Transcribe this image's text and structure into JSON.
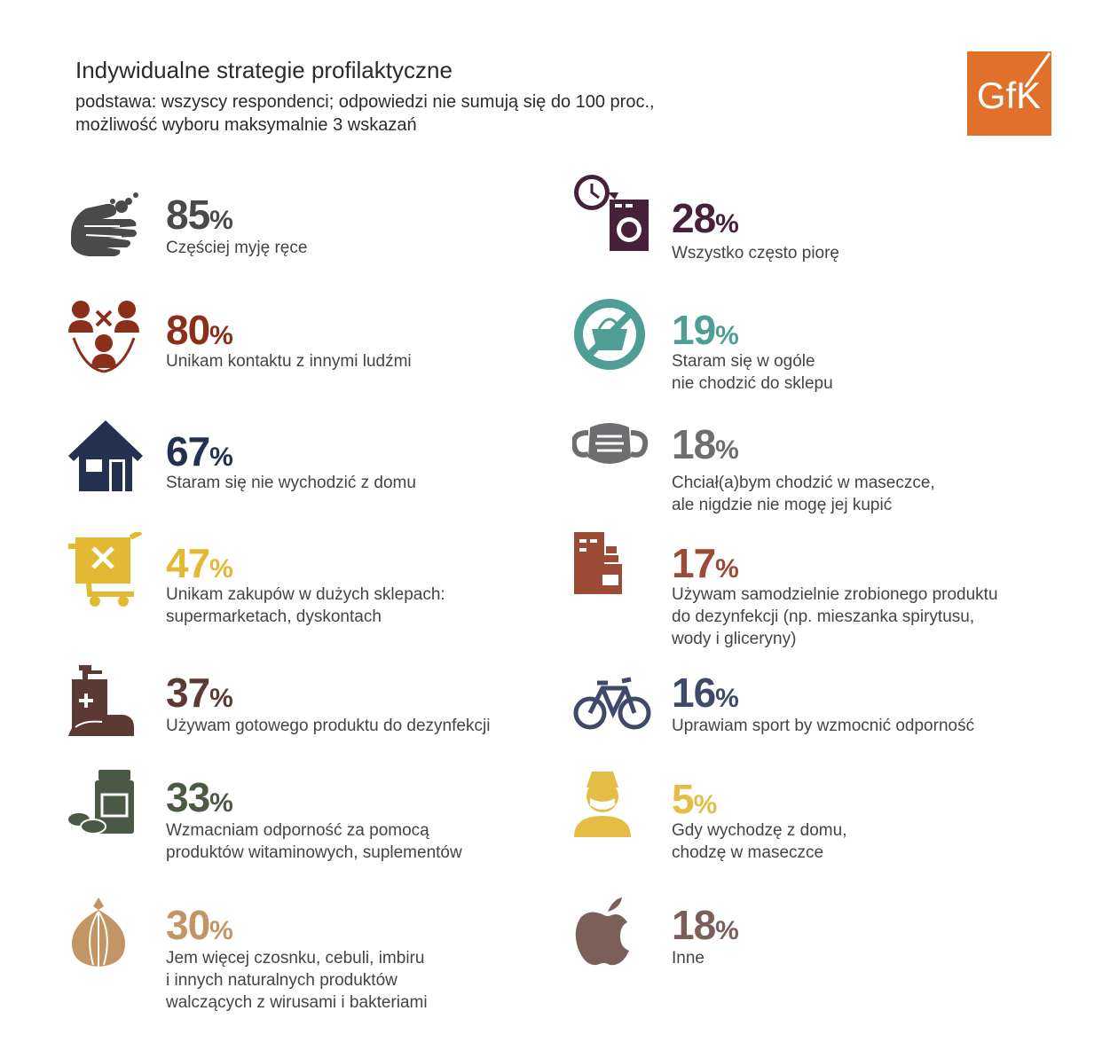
{
  "header": {
    "title": "Indywidualne strategie profilaktyczne",
    "subtitle_lines": [
      "podstawa: wszyscy respondenci; odpowiedzi nie sumują się do 100 proc.,",
      "możliwość wyboru maksymalnie 3 wskazań"
    ],
    "logo_text": "GfK",
    "logo_color": "#e0702a"
  },
  "chart_data": {
    "type": "table",
    "title": "Indywidualne strategie profilaktyczne",
    "unit": "%",
    "items": [
      {
        "value": 85,
        "label_lines": [
          "Częściej myję ręce"
        ],
        "icon": "washing-hands-icon",
        "color": "#4a4a4a"
      },
      {
        "value": 80,
        "label_lines": [
          "Unikam kontaktu z innymi ludźmi"
        ],
        "icon": "avoid-contact-icon",
        "color": "#8b2e1a"
      },
      {
        "value": 67,
        "label_lines": [
          "Staram się nie wychodzić z domu"
        ],
        "icon": "house-icon",
        "color": "#23304f"
      },
      {
        "value": 47,
        "label_lines": [
          "Unikam zakupów w dużych sklepach:",
          "supermarketach, dyskontach"
        ],
        "icon": "cart-x-icon",
        "color": "#e3b933"
      },
      {
        "value": 37,
        "label_lines": [
          "Używam gotowego produktu do dezynfekcji"
        ],
        "icon": "sanitizer-icon",
        "color": "#5b3a33"
      },
      {
        "value": 33,
        "label_lines": [
          "Wzmacniam odporność za pomocą",
          "produktów witaminowych, suplementów"
        ],
        "icon": "vitamins-icon",
        "color": "#4b5a44"
      },
      {
        "value": 30,
        "label_lines": [
          "Jem więcej czosnku, cebuli, imbiru",
          "i innych naturalnych produktów",
          "walczących z wirusami i bakteriami"
        ],
        "icon": "onion-icon",
        "color": "#c39565"
      },
      {
        "value": 28,
        "label_lines": [
          "Wszystko często piorę"
        ],
        "icon": "washing-machine-icon",
        "color": "#47203a"
      },
      {
        "value": 19,
        "label_lines": [
          "Staram się w ogóle",
          "nie chodzić do sklepu"
        ],
        "icon": "no-shopping-icon",
        "color": "#4f9e95"
      },
      {
        "value": 18,
        "label_lines": [
          "Chciał(a)bym chodzić w maseczce,",
          "ale nigdzie nie mogę jej kupić"
        ],
        "icon": "face-mask-icon",
        "color": "#6d6e70"
      },
      {
        "value": 17,
        "label_lines": [
          "Używam samodzielnie zrobionego produktu",
          "do dezynfekcji (np. mieszanka spirytusu,",
          "wody i gliceryny)"
        ],
        "icon": "homemade-disinfectant-icon",
        "color": "#9b4b36"
      },
      {
        "value": 16,
        "label_lines": [
          "Uprawiam sport by wzmocnić odporność"
        ],
        "icon": "bicycle-icon",
        "color": "#3f4a68"
      },
      {
        "value": 5,
        "label_lines": [
          "Gdy wychodzę z domu,",
          "chodzę w maseczce"
        ],
        "icon": "masked-person-icon",
        "color": "#e4bd45"
      },
      {
        "value": 18,
        "label_lines": [
          "Inne"
        ],
        "icon": "apple-icon",
        "color": "#7b6059"
      }
    ]
  }
}
